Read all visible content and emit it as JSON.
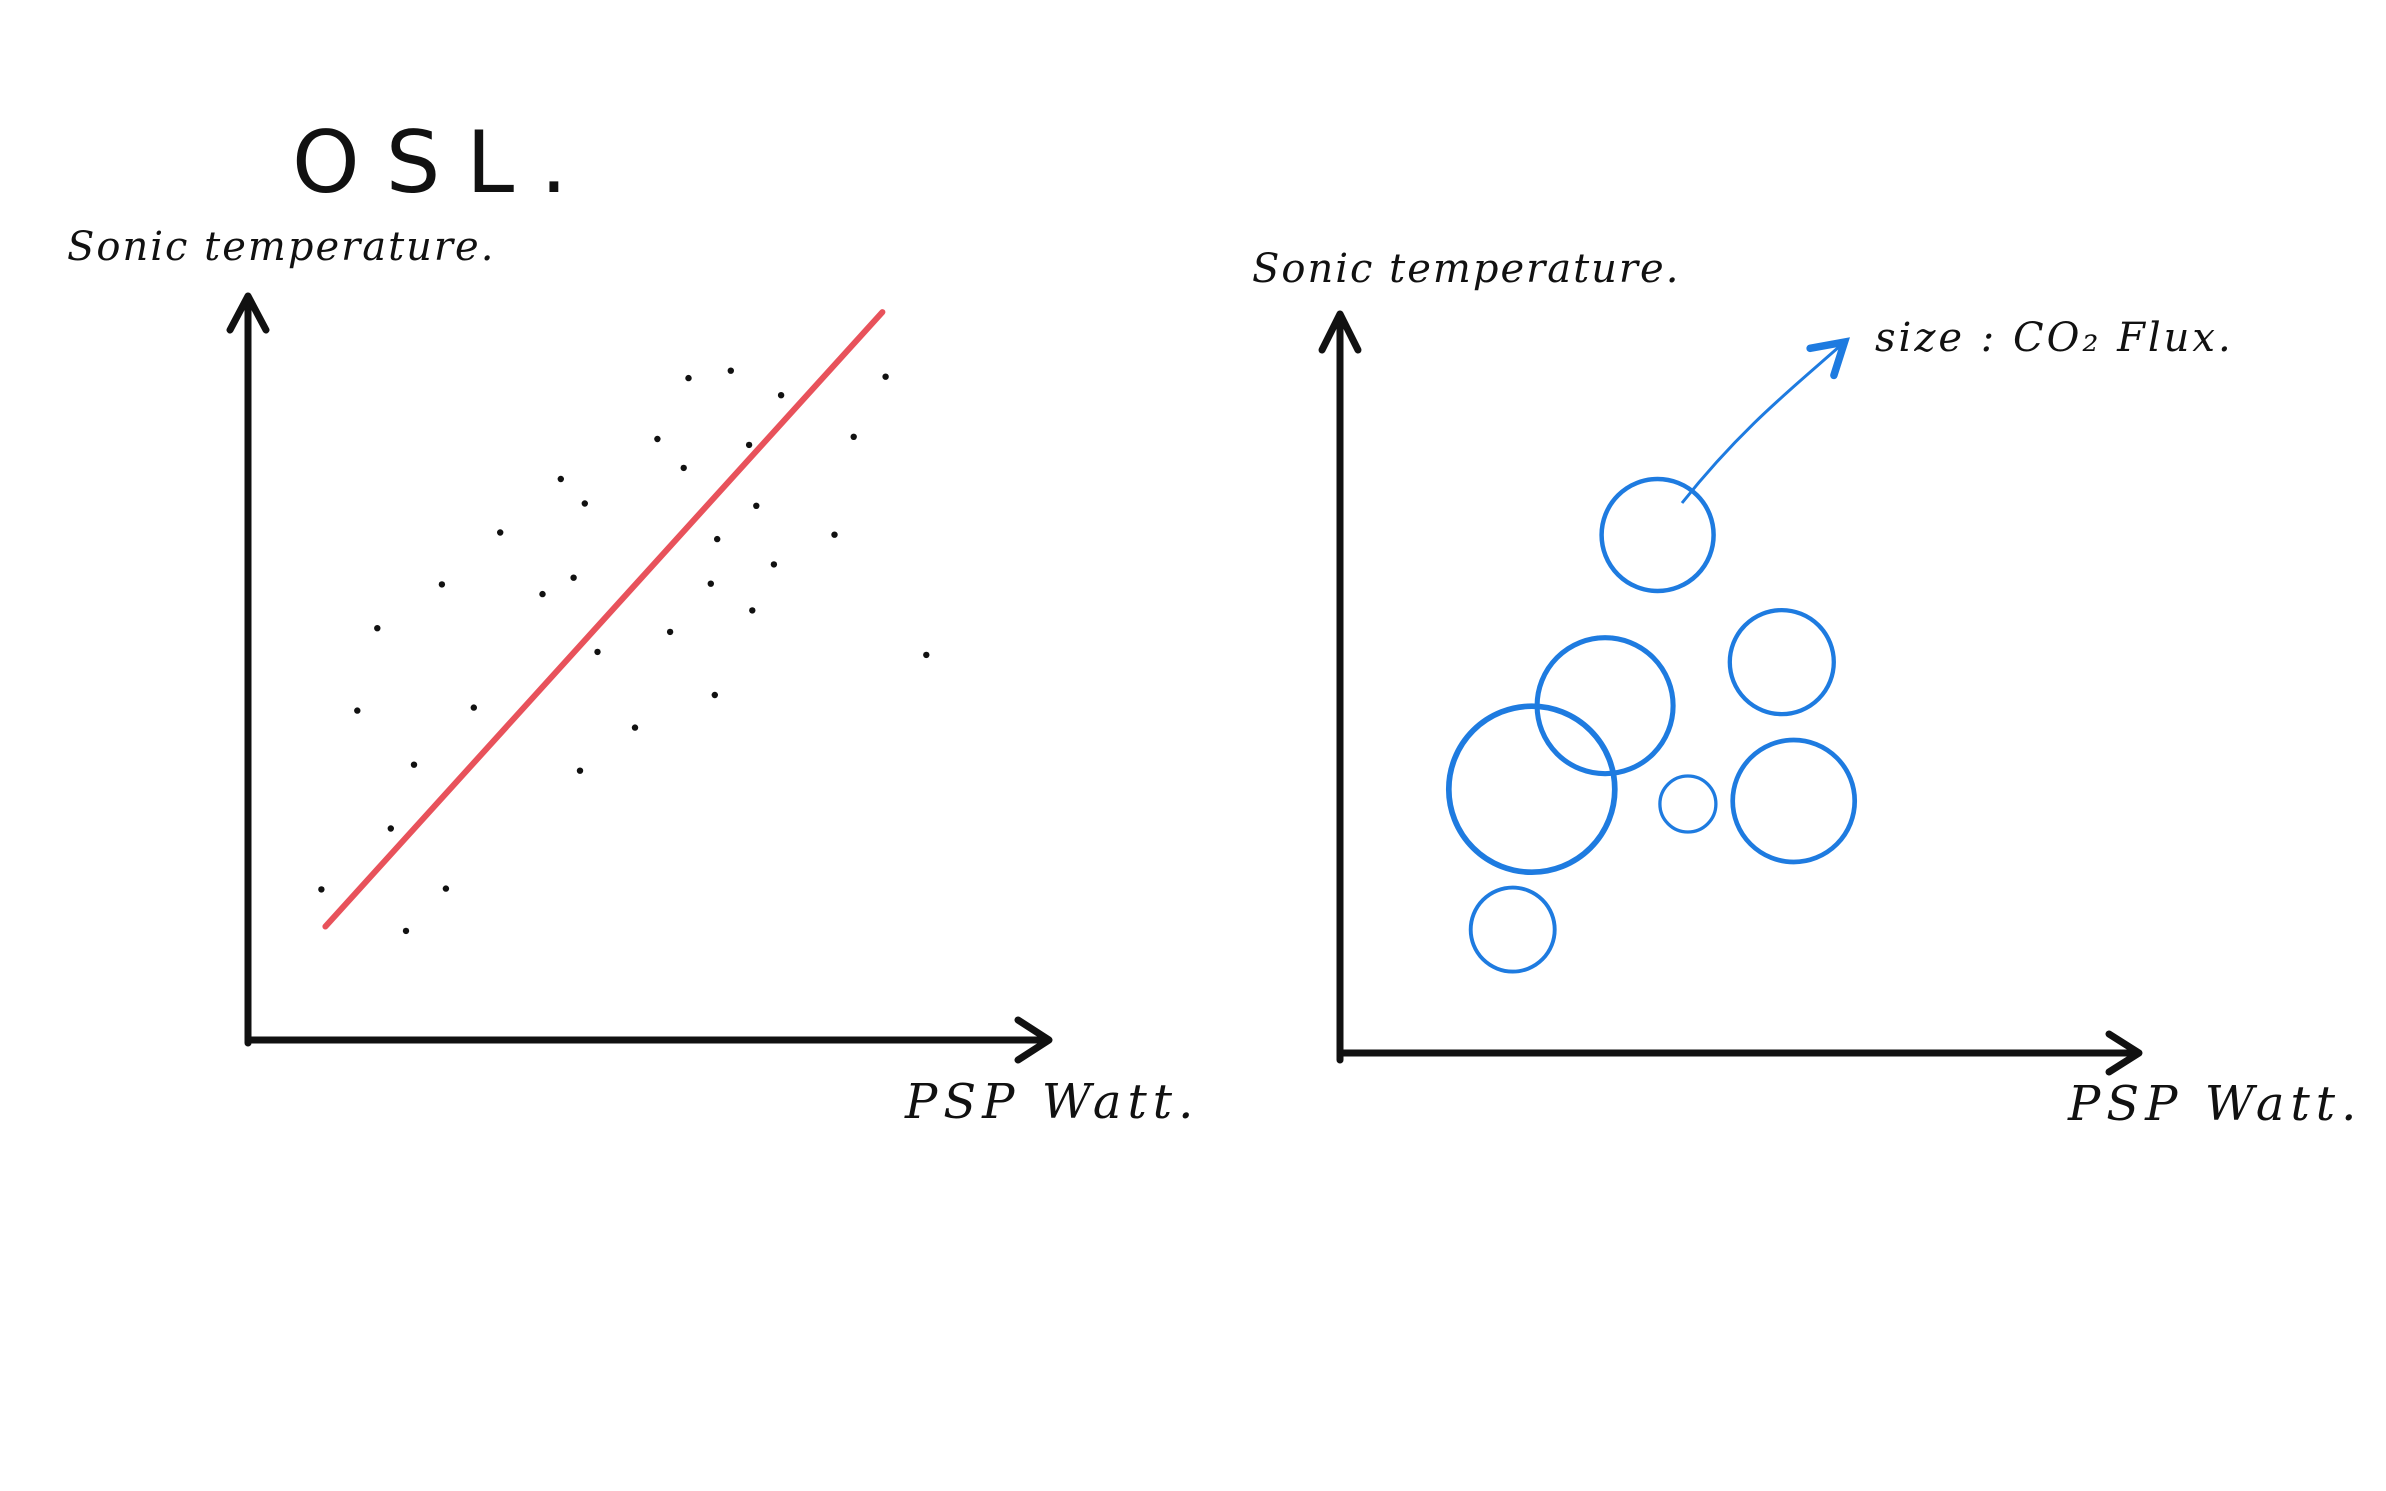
{
  "page": {
    "background": "#ffffff"
  },
  "chart_data": [
    {
      "type": "scatter",
      "title": "OSL.",
      "ylabel": "Sonic temperature.",
      "xlabel": "PSP Watt.",
      "xlim": [
        0,
        100
      ],
      "ylim": [
        0,
        100
      ],
      "grid": false,
      "series": [
        {
          "points": [
            [
              55.2,
              89.2
            ],
            [
              60.5,
              90.2
            ],
            [
              66.8,
              86.9
            ],
            [
              79.9,
              89.4
            ],
            [
              51.3,
              81.0
            ],
            [
              54.6,
              77.1
            ],
            [
              62.8,
              80.2
            ],
            [
              75.9,
              81.3
            ],
            [
              39.2,
              75.6
            ],
            [
              42.2,
              72.3
            ],
            [
              31.6,
              68.4
            ],
            [
              58.8,
              67.5
            ],
            [
              63.7,
              72.0
            ],
            [
              65.9,
              64.1
            ],
            [
              73.5,
              68.1
            ],
            [
              24.3,
              61.4
            ],
            [
              36.9,
              60.1
            ],
            [
              40.8,
              62.3
            ],
            [
              58.0,
              61.5
            ],
            [
              63.2,
              57.9
            ],
            [
              16.2,
              55.5
            ],
            [
              43.8,
              52.3
            ],
            [
              52.9,
              55.0
            ],
            [
              85.0,
              51.9
            ],
            [
              13.7,
              44.4
            ],
            [
              28.3,
              44.8
            ],
            [
              48.5,
              42.1
            ],
            [
              58.5,
              46.5
            ],
            [
              20.8,
              37.1
            ],
            [
              41.6,
              36.3
            ],
            [
              17.9,
              28.5
            ],
            [
              9.2,
              20.3
            ],
            [
              24.8,
              20.4
            ],
            [
              19.8,
              14.7
            ]
          ]
        }
      ],
      "fit_line": {
        "x": [
          9.7,
          79.5
        ],
        "y": [
          15.3,
          98.1
        ],
        "color": "#e8525b"
      },
      "point_color": "#111111"
    },
    {
      "type": "scatter",
      "ylabel": "Sonic temperature.",
      "xlabel": "PSP Watt.",
      "size_annotation": "size : CO₂ Flux.",
      "xlim": [
        0,
        100
      ],
      "ylim": [
        0,
        100
      ],
      "grid": false,
      "bubble_color": "#1e7be0",
      "series": [
        {
          "points": [
            {
              "x": 39.9,
              "y": 70.1,
              "size": 5.6
            },
            {
              "x": 33.3,
              "y": 47.0,
              "size": 6.8
            },
            {
              "x": 55.5,
              "y": 52.9,
              "size": 5.2
            },
            {
              "x": 24.1,
              "y": 35.7,
              "size": 8.3
            },
            {
              "x": 43.7,
              "y": 33.7,
              "size": 2.8
            },
            {
              "x": 57.0,
              "y": 34.1,
              "size": 6.1
            },
            {
              "x": 21.7,
              "y": 16.7,
              "size": 4.2
            }
          ]
        }
      ]
    }
  ]
}
